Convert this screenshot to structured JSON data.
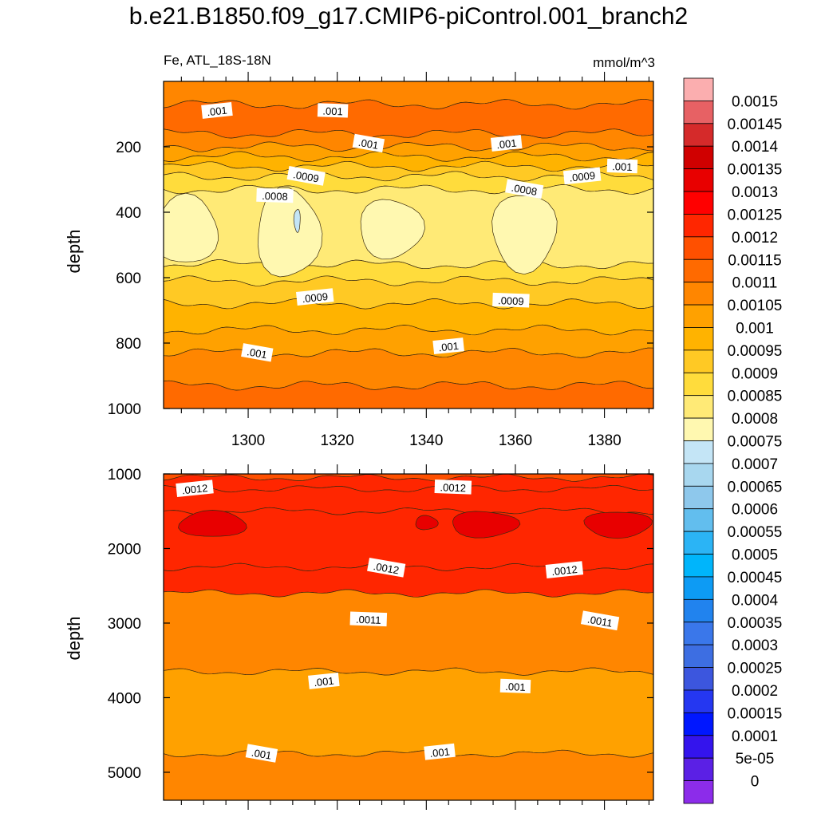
{
  "figure": {
    "title": "b.e21.B1850.f09_g17.CMIP6-piControl.001_branch2",
    "variable_label": "Fe, ATL_18S-18N",
    "units": "mmol/m^3"
  },
  "chart_data": [
    {
      "type": "contour",
      "panel": "upper",
      "xlabel": "",
      "ylabel": "depth",
      "xlim": [
        1281,
        1391
      ],
      "ylim": [
        1000,
        0
      ],
      "x_ticks": [
        1300,
        1320,
        1340,
        1360,
        1380
      ],
      "y_ticks": [
        200,
        400,
        600,
        800,
        1000
      ],
      "depth_bands": [
        {
          "top": 0,
          "bottom": 70,
          "value": 0.00105
        },
        {
          "top": 70,
          "bottom": 160,
          "value": 0.0011
        },
        {
          "top": 160,
          "bottom": 200,
          "value": 0.00105
        },
        {
          "top": 200,
          "bottom": 230,
          "value": 0.001
        },
        {
          "top": 230,
          "bottom": 260,
          "value": 0.00095
        },
        {
          "top": 260,
          "bottom": 290,
          "value": 0.0009
        },
        {
          "top": 290,
          "bottom": 330,
          "value": 0.00085
        },
        {
          "top": 330,
          "bottom": 560,
          "value": 0.0008
        },
        {
          "top": 560,
          "bottom": 610,
          "value": 0.00085
        },
        {
          "top": 610,
          "bottom": 680,
          "value": 0.0009
        },
        {
          "top": 680,
          "bottom": 760,
          "value": 0.00095
        },
        {
          "top": 760,
          "bottom": 830,
          "value": 0.001
        },
        {
          "top": 830,
          "bottom": 930,
          "value": 0.00105
        },
        {
          "top": 930,
          "bottom": 1000,
          "value": 0.0011
        }
      ],
      "minimum_regions": [
        {
          "x_center": 1286,
          "depth_top": 350,
          "depth_bottom": 560,
          "value": 0.00075
        },
        {
          "x_center": 1309,
          "depth_top": 330,
          "depth_bottom": 600,
          "value": 0.00075
        },
        {
          "x_center": 1332,
          "depth_top": 360,
          "depth_bottom": 540,
          "value": 0.00075
        },
        {
          "x_center": 1362,
          "depth_top": 340,
          "depth_bottom": 580,
          "value": 0.00075
        },
        {
          "x_center": 1311,
          "depth_top": 390,
          "depth_bottom": 460,
          "value": 0.0007
        }
      ],
      "contour_labels": [
        {
          "text": ".001",
          "x": 1293,
          "depth": 90
        },
        {
          "text": ".001",
          "x": 1319,
          "depth": 90
        },
        {
          "text": ".001",
          "x": 1327,
          "depth": 190
        },
        {
          "text": ".001",
          "x": 1358,
          "depth": 190
        },
        {
          "text": ".001",
          "x": 1384,
          "depth": 260
        },
        {
          "text": ".0009",
          "x": 1313,
          "depth": 290
        },
        {
          "text": ".0009",
          "x": 1375,
          "depth": 290
        },
        {
          "text": ".0008",
          "x": 1306,
          "depth": 350
        },
        {
          "text": ".0008",
          "x": 1362,
          "depth": 330
        },
        {
          "text": ".0009",
          "x": 1315,
          "depth": 660
        },
        {
          "text": ".0009",
          "x": 1359,
          "depth": 670
        },
        {
          "text": ".001",
          "x": 1302,
          "depth": 830
        },
        {
          "text": ".001",
          "x": 1345,
          "depth": 810
        }
      ]
    },
    {
      "type": "contour",
      "panel": "lower",
      "xlabel": "",
      "ylabel": "depth",
      "xlim": [
        1281,
        1391
      ],
      "ylim": [
        5375,
        1000
      ],
      "y_ticks": [
        1000,
        2000,
        3000,
        4000,
        5000
      ],
      "depth_bands": [
        {
          "top": 1000,
          "bottom": 1050,
          "value": 0.00115
        },
        {
          "top": 1050,
          "bottom": 1200,
          "value": 0.0012
        },
        {
          "top": 1200,
          "bottom": 1500,
          "value": 0.00125
        },
        {
          "top": 1500,
          "bottom": 2250,
          "value": 0.00125
        },
        {
          "top": 2250,
          "bottom": 2600,
          "value": 0.0012
        },
        {
          "top": 2600,
          "bottom": 3650,
          "value": 0.00105
        },
        {
          "top": 3650,
          "bottom": 4750,
          "value": 0.001
        },
        {
          "top": 4750,
          "bottom": 5375,
          "value": 0.00105
        }
      ],
      "maximum_regions": [
        {
          "x_center": 1292,
          "depth_top": 1500,
          "depth_bottom": 1850,
          "value": 0.0013
        },
        {
          "x_center": 1340,
          "depth_top": 1560,
          "depth_bottom": 1750,
          "value": 0.0013
        },
        {
          "x_center": 1353,
          "depth_top": 1500,
          "depth_bottom": 1850,
          "value": 0.0013
        },
        {
          "x_center": 1383,
          "depth_top": 1500,
          "depth_bottom": 1850,
          "value": 0.0013
        }
      ],
      "contour_labels": [
        {
          "text": ".0012",
          "x": 1288,
          "depth": 1200
        },
        {
          "text": ".0012",
          "x": 1346,
          "depth": 1180
        },
        {
          "text": ".0012",
          "x": 1331,
          "depth": 2260
        },
        {
          "text": ".0012",
          "x": 1371,
          "depth": 2290
        },
        {
          "text": ".0011",
          "x": 1327,
          "depth": 2950
        },
        {
          "text": ".0011",
          "x": 1379,
          "depth": 2970
        },
        {
          "text": ".001",
          "x": 1317,
          "depth": 3780
        },
        {
          "text": ".001",
          "x": 1360,
          "depth": 3850
        },
        {
          "text": ".001",
          "x": 1303,
          "depth": 4750
        },
        {
          "text": ".001",
          "x": 1343,
          "depth": 4730
        }
      ]
    }
  ],
  "colorbar": {
    "labels": [
      "0.0015",
      "0.00145",
      "0.0014",
      "0.00135",
      "0.0013",
      "0.00125",
      "0.0012",
      "0.00115",
      "0.0011",
      "0.00105",
      "0.001",
      "0.00095",
      "0.0009",
      "0.00085",
      "0.0008",
      "0.00075",
      "0.0007",
      "0.00065",
      "0.0006",
      "0.00055",
      "0.0005",
      "0.00045",
      "0.0004",
      "0.00035",
      "0.0003",
      "0.00025",
      "0.0002",
      "0.00015",
      "0.0001",
      "5e-05",
      "0"
    ],
    "colors": [
      "#fbaeaf",
      "#e76164",
      "#d52a2a",
      "#d00000",
      "#e80000",
      "#ff0000",
      "#ff2600",
      "#ff5000",
      "#ff6a00",
      "#ff8600",
      "#ffa100",
      "#ffb300",
      "#ffc924",
      "#ffdc3c",
      "#ffea76",
      "#fff8b0",
      "#c4e5f6",
      "#a8d7ef",
      "#8ec8ec",
      "#62beee",
      "#2bb4f5",
      "#00b5fb",
      "#0d9bf4",
      "#2183ee",
      "#3a77ea",
      "#3d6ee2",
      "#3c56de",
      "#2537f1",
      "#0017ff",
      "#3414ed",
      "#5b20e5",
      "#8c2cea"
    ]
  },
  "level_colors": {
    "0.0007": "#c4e5f6",
    "0.00075": "#fff8b0",
    "0.0008": "#ffea76",
    "0.00085": "#ffdc3c",
    "0.0009": "#ffc924",
    "0.00095": "#ffb300",
    "0.001": "#ffa100",
    "0.00105": "#ff8600",
    "0.0011": "#ff6a00",
    "0.00115": "#ff5000",
    "0.0012": "#ff2600",
    "0.00125": "#ff2600",
    "0.0013": "#e80000"
  }
}
